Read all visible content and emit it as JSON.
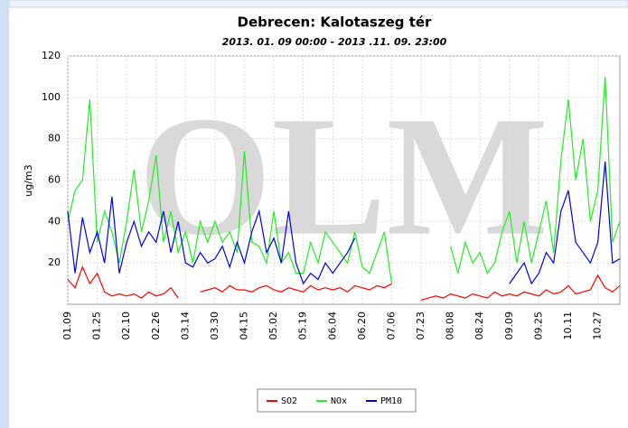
{
  "chart_data": {
    "type": "line",
    "title": "Debrecen: Kalotaszeg tér",
    "subtitle": "2013. 01. 09 00:00 - 2013 .11. 09. 23:00",
    "watermark": "OLM",
    "y_label": "ug/m3",
    "categories": [
      "01.09",
      null,
      null,
      null,
      "01.25",
      null,
      null,
      null,
      "02.10",
      null,
      null,
      null,
      "02.26",
      null,
      null,
      null,
      "03.14",
      null,
      null,
      null,
      "03.30",
      null,
      null,
      null,
      "04.15",
      null,
      null,
      null,
      "05.02",
      null,
      null,
      null,
      "05.19",
      null,
      null,
      null,
      "06.04",
      null,
      null,
      null,
      "06.20",
      null,
      null,
      null,
      "07.06",
      null,
      null,
      null,
      "07.23",
      null,
      null,
      null,
      "08.08",
      null,
      null,
      null,
      "08.24",
      null,
      null,
      null,
      "09.09",
      null,
      null,
      null,
      "09.25",
      null,
      null,
      null,
      "10.11",
      null,
      null,
      null,
      "10.27",
      null,
      null,
      null
    ],
    "series": [
      {
        "name": "SO2",
        "color": "#ff0000",
        "values": [
          12,
          8,
          18,
          10,
          15,
          6,
          4,
          5,
          4,
          5,
          3,
          6,
          4,
          5,
          8,
          3,
          null,
          null,
          6,
          7,
          8,
          6,
          9,
          7,
          7,
          6,
          8,
          9,
          7,
          6,
          8,
          7,
          6,
          9,
          7,
          8,
          7,
          8,
          6,
          9,
          8,
          7,
          9,
          8,
          10,
          null,
          null,
          null,
          2,
          3,
          4,
          3,
          5,
          4,
          3,
          5,
          4,
          3,
          6,
          4,
          5,
          4,
          6,
          5,
          4,
          7,
          5,
          6,
          9,
          5,
          6,
          7,
          14,
          8,
          6,
          9
        ]
      },
      {
        "name": "NOx",
        "color": "#22ee22",
        "values": [
          40,
          55,
          60,
          99,
          30,
          45,
          35,
          20,
          40,
          65,
          35,
          50,
          72,
          30,
          45,
          25,
          35,
          20,
          40,
          30,
          40,
          30,
          35,
          25,
          74,
          30,
          28,
          20,
          45,
          20,
          25,
          15,
          15,
          30,
          20,
          35,
          30,
          25,
          20,
          35,
          18,
          15,
          25,
          35,
          10,
          null,
          null,
          null,
          null,
          null,
          null,
          null,
          28,
          15,
          30,
          20,
          25,
          15,
          20,
          35,
          45,
          20,
          40,
          20,
          35,
          50,
          25,
          70,
          99,
          60,
          80,
          40,
          55,
          110,
          30,
          40
        ]
      },
      {
        "name": "PM10",
        "color": "#0000ee",
        "values": [
          45,
          15,
          42,
          25,
          35,
          20,
          52,
          15,
          30,
          40,
          28,
          35,
          30,
          45,
          25,
          40,
          20,
          18,
          25,
          20,
          22,
          28,
          18,
          30,
          20,
          35,
          45,
          25,
          32,
          20,
          45,
          20,
          10,
          15,
          12,
          20,
          15,
          20,
          25,
          32,
          null,
          null,
          null,
          null,
          null,
          null,
          null,
          null,
          null,
          null,
          null,
          null,
          null,
          null,
          null,
          null,
          null,
          null,
          null,
          null,
          10,
          15,
          20,
          10,
          15,
          25,
          20,
          45,
          55,
          30,
          25,
          20,
          30,
          69,
          20,
          22
        ]
      }
    ],
    "ylim": [
      0,
      120
    ],
    "yticks": [
      20,
      40,
      60,
      80,
      100,
      120
    ],
    "grid": true
  }
}
